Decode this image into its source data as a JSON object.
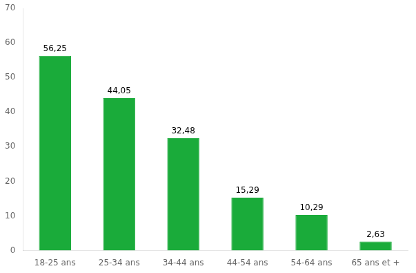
{
  "chart_data": {
    "type": "bar",
    "categories": [
      "18-25 ans",
      "25-34 ans",
      "34-44 ans",
      "44-54 ans",
      "54-64 ans",
      "65 ans et +"
    ],
    "values": [
      56.25,
      44.05,
      32.48,
      15.29,
      10.29,
      2.63
    ],
    "value_labels": [
      "56,25",
      "44,05",
      "32,48",
      "15,29",
      "10,29",
      "2,63"
    ],
    "color": "#1aab3a",
    "ylim": [
      0,
      70
    ],
    "yticks": [
      0,
      10,
      20,
      30,
      40,
      50,
      60,
      70
    ],
    "grid": false
  }
}
